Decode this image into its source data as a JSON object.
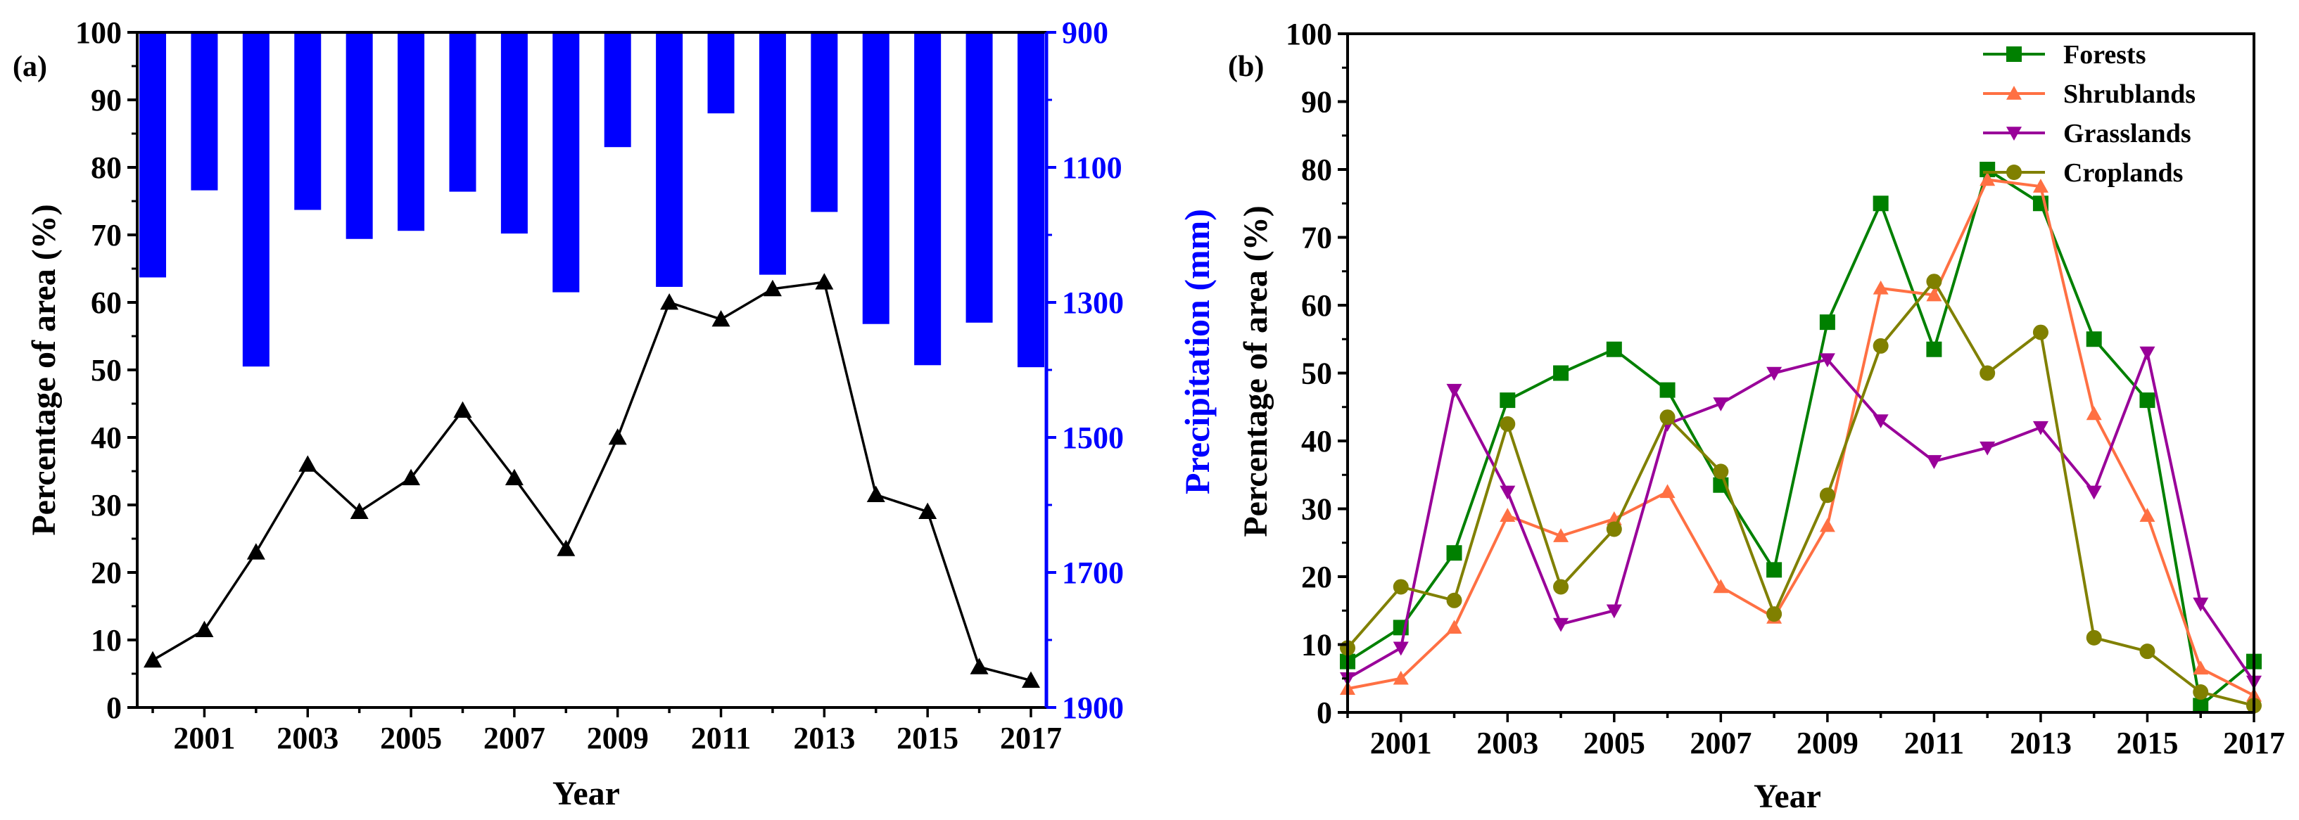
{
  "chart_data": [
    {
      "type": "line",
      "panel_label": "(a)",
      "xlabel": "Year",
      "ylabel": "Percentage of area (%)",
      "y2label": "Precipitation (mm)",
      "x_ticks": [
        "2001",
        "2003",
        "2005",
        "2007",
        "2009",
        "2011",
        "2013",
        "2015",
        "2017"
      ],
      "xlim": [
        1999.7,
        2017.3
      ],
      "ylim": [
        0,
        100
      ],
      "y_ticks": [
        "0",
        "10",
        "20",
        "30",
        "40",
        "50",
        "60",
        "70",
        "80",
        "90",
        "100"
      ],
      "y2lim": [
        900,
        1900
      ],
      "y2_ticks": [
        "900",
        "1100",
        "1300",
        "1500",
        "1700",
        "1900"
      ],
      "y2_inverted": true,
      "years": [
        2000,
        2001,
        2002,
        2003,
        2004,
        2005,
        2006,
        2007,
        2008,
        2009,
        2010,
        2011,
        2012,
        2013,
        2014,
        2015,
        2016,
        2017
      ],
      "series": [
        {
          "name": "Percentage of area",
          "kind": "line",
          "marker": "triangle-up",
          "color": "#000000",
          "values": [
            7,
            11.5,
            23,
            36,
            29,
            34,
            44,
            34,
            23.5,
            40,
            60,
            57.5,
            62,
            63,
            31.5,
            29,
            6,
            4
          ]
        },
        {
          "name": "Precipitation",
          "kind": "bar",
          "axis": "right",
          "color": "#0000ff",
          "values": [
            1263,
            1134,
            1395,
            1163,
            1206,
            1194,
            1136,
            1198,
            1285,
            1070,
            1277,
            1020,
            1259,
            1166,
            1332,
            1393,
            1330,
            1396
          ]
        }
      ]
    },
    {
      "type": "line",
      "panel_label": "(b)",
      "xlabel": "Year",
      "ylabel": "Percentage of area (%)",
      "x_ticks": [
        "2001",
        "2003",
        "2005",
        "2007",
        "2009",
        "2011",
        "2013",
        "2015",
        "2017"
      ],
      "xlim": [
        2000,
        2017
      ],
      "ylim": [
        0,
        100
      ],
      "y_ticks": [
        "0",
        "10",
        "20",
        "30",
        "40",
        "50",
        "60",
        "70",
        "80",
        "90",
        "100"
      ],
      "legend_position": "top-right",
      "years": [
        2000,
        2001,
        2002,
        2003,
        2004,
        2005,
        2006,
        2007,
        2008,
        2009,
        2010,
        2011,
        2012,
        2013,
        2014,
        2015,
        2016,
        2017
      ],
      "series": [
        {
          "name": "Forests",
          "marker": "square",
          "color": "#008000",
          "values": [
            7.5,
            12.5,
            23.5,
            46,
            50,
            53.5,
            47.5,
            33.5,
            21,
            57.5,
            75,
            53.5,
            80,
            75,
            55,
            46,
            1,
            7.5
          ]
        },
        {
          "name": "Shrublands",
          "marker": "triangle-up",
          "color": "#ff7043",
          "values": [
            3.5,
            5,
            12.5,
            29,
            26,
            28.5,
            32.5,
            18.5,
            14,
            27.5,
            62.5,
            61.5,
            78.5,
            77.5,
            44,
            29,
            6.5,
            2.5
          ]
        },
        {
          "name": "Grasslands",
          "marker": "triangle-down",
          "color": "#990099",
          "values": [
            5,
            9.5,
            47.5,
            32.5,
            13,
            15,
            42.5,
            45.5,
            50,
            52,
            43,
            37,
            39,
            42,
            32.5,
            53,
            16,
            4.5
          ]
        },
        {
          "name": "Croplands",
          "marker": "circle",
          "color": "#808000",
          "values": [
            9.5,
            18.5,
            16.5,
            42.5,
            18.5,
            27,
            43.5,
            35.5,
            14.5,
            32,
            54,
            63.5,
            50,
            56,
            11,
            9,
            3,
            1
          ]
        }
      ]
    }
  ]
}
